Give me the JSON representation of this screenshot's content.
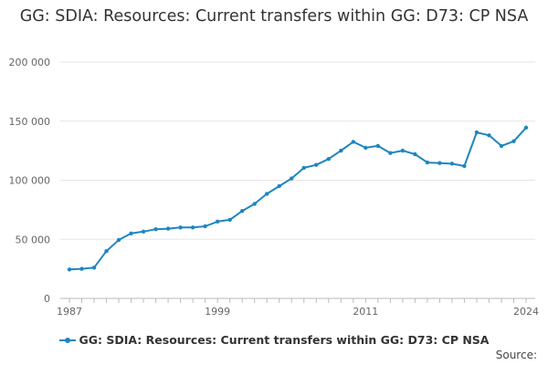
{
  "chart_data": {
    "type": "line",
    "title": "GG: SDIA: Resources: Current transfers within GG: D73: CP NSA",
    "xlabel": "",
    "ylabel": "",
    "x_tick_labels": [
      "1987",
      "1999",
      "2011",
      "2024"
    ],
    "y_tick_labels": [
      "0",
      "50 000",
      "100 000",
      "150 000",
      "200 000"
    ],
    "y_ticks": [
      0,
      50000,
      100000,
      150000,
      200000
    ],
    "ylim": [
      0,
      200000
    ],
    "xlim": [
      1987,
      2024
    ],
    "grid": "horizontal",
    "legend_position": "bottom",
    "color": "#1f86c0",
    "series": [
      {
        "name": "GG: SDIA: Resources: Current transfers within GG: D73: CP NSA",
        "x": [
          1987,
          1988,
          1989,
          1990,
          1991,
          1992,
          1993,
          1994,
          1995,
          1996,
          1997,
          1998,
          1999,
          2000,
          2001,
          2002,
          2003,
          2004,
          2005,
          2006,
          2007,
          2008,
          2009,
          2010,
          2011,
          2012,
          2013,
          2014,
          2015,
          2016,
          2017,
          2018,
          2019,
          2020,
          2021,
          2022,
          2023,
          2024
        ],
        "values": [
          24500,
          25000,
          26000,
          40000,
          49500,
          55000,
          56500,
          58500,
          59000,
          60000,
          60000,
          61000,
          65000,
          66500,
          74000,
          80000,
          88500,
          95000,
          101500,
          110500,
          113000,
          118000,
          125000,
          132500,
          127500,
          129000,
          123000,
          125000,
          122000,
          115000,
          114500,
          114000,
          112000,
          140500,
          138000,
          129000,
          133000,
          144500
        ]
      }
    ]
  },
  "source_label": "Source:"
}
